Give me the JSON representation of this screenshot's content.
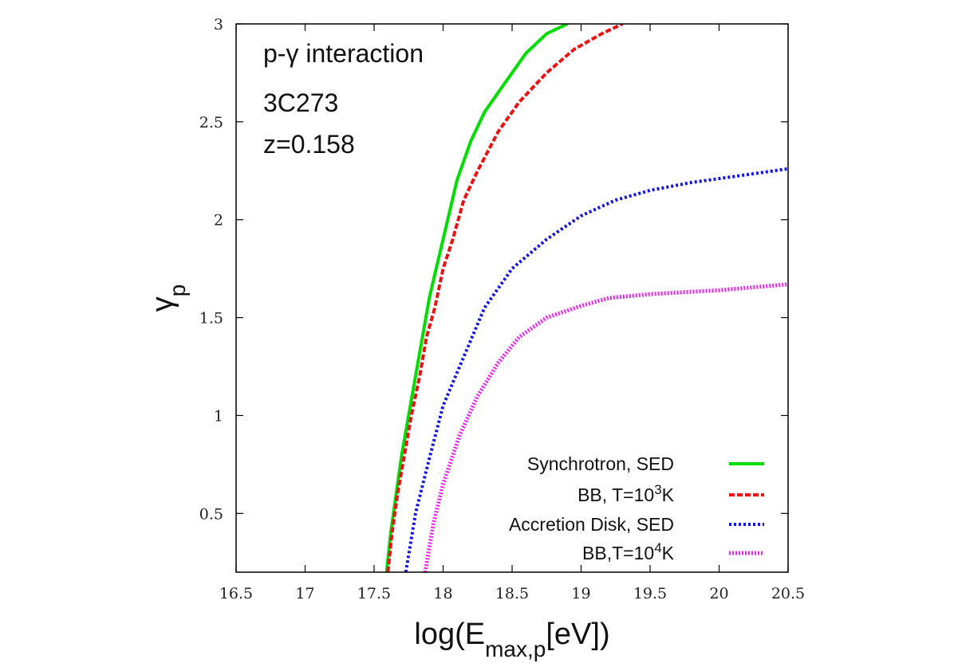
{
  "chart_data": {
    "type": "line",
    "xlabel": {
      "main": "log(E",
      "sub": "max,p",
      "tail": "[eV])"
    },
    "ylabel": {
      "main": "γ",
      "sub": "p"
    },
    "xlim": [
      16.5,
      20.5
    ],
    "ylim": [
      0.2,
      3
    ],
    "xticks": [
      "16.5",
      "17",
      "17.5",
      "18",
      "18.5",
      "19",
      "19.5",
      "20",
      "20.5"
    ],
    "yticks": [
      "0.5",
      "1",
      "1.5",
      "2",
      "2.5",
      "3"
    ],
    "grid": false,
    "legend_position": "bottom-right",
    "annotations": [
      {
        "text": "p-γ interaction"
      },
      {
        "text": "3C273"
      },
      {
        "text": "z=0.158"
      }
    ],
    "series": [
      {
        "legend": {
          "text": "Synchrotron, SED"
        },
        "color": "#00dd00",
        "style": "solid",
        "x": [
          17.59,
          17.62,
          17.66,
          17.7,
          17.75,
          17.8,
          17.85,
          17.9,
          17.95,
          18.0,
          18.05,
          18.1,
          18.2,
          18.3,
          18.45,
          18.6,
          18.75,
          18.9
        ],
        "y": [
          0.2,
          0.4,
          0.6,
          0.8,
          1.0,
          1.2,
          1.4,
          1.6,
          1.75,
          1.9,
          2.05,
          2.2,
          2.4,
          2.55,
          2.7,
          2.85,
          2.95,
          3.0
        ]
      },
      {
        "legend": {
          "text": "BB, T=10",
          "sup": "3",
          "tail": "K"
        },
        "color": "#ee1111",
        "style": "dashed",
        "x": [
          17.6,
          17.63,
          17.67,
          17.72,
          17.77,
          17.83,
          17.88,
          17.94,
          18.0,
          18.07,
          18.15,
          18.25,
          18.4,
          18.55,
          18.75,
          18.95,
          19.15,
          19.3
        ],
        "y": [
          0.2,
          0.4,
          0.6,
          0.8,
          1.0,
          1.2,
          1.4,
          1.55,
          1.75,
          1.9,
          2.1,
          2.25,
          2.45,
          2.6,
          2.75,
          2.87,
          2.95,
          3.0
        ]
      },
      {
        "legend": {
          "text": "Accretion Disk, SED"
        },
        "color": "#1111ee",
        "style": "dotted",
        "x": [
          17.73,
          17.8,
          17.9,
          18.0,
          18.15,
          18.3,
          18.5,
          18.75,
          19.0,
          19.25,
          19.5,
          19.8,
          20.1,
          20.5
        ],
        "y": [
          0.2,
          0.5,
          0.78,
          1.05,
          1.3,
          1.55,
          1.75,
          1.9,
          2.02,
          2.1,
          2.15,
          2.19,
          2.22,
          2.26
        ]
      },
      {
        "legend": {
          "text": "BB,T=10",
          "sup": "4",
          "tail": "K"
        },
        "color": "#ee22ee",
        "style": "dotted-thick",
        "x": [
          17.87,
          17.93,
          18.0,
          18.12,
          18.25,
          18.4,
          18.55,
          18.75,
          19.0,
          19.2,
          19.5,
          20.0,
          20.5
        ],
        "y": [
          0.2,
          0.45,
          0.65,
          0.9,
          1.1,
          1.27,
          1.4,
          1.5,
          1.56,
          1.6,
          1.62,
          1.64,
          1.67
        ]
      }
    ]
  }
}
